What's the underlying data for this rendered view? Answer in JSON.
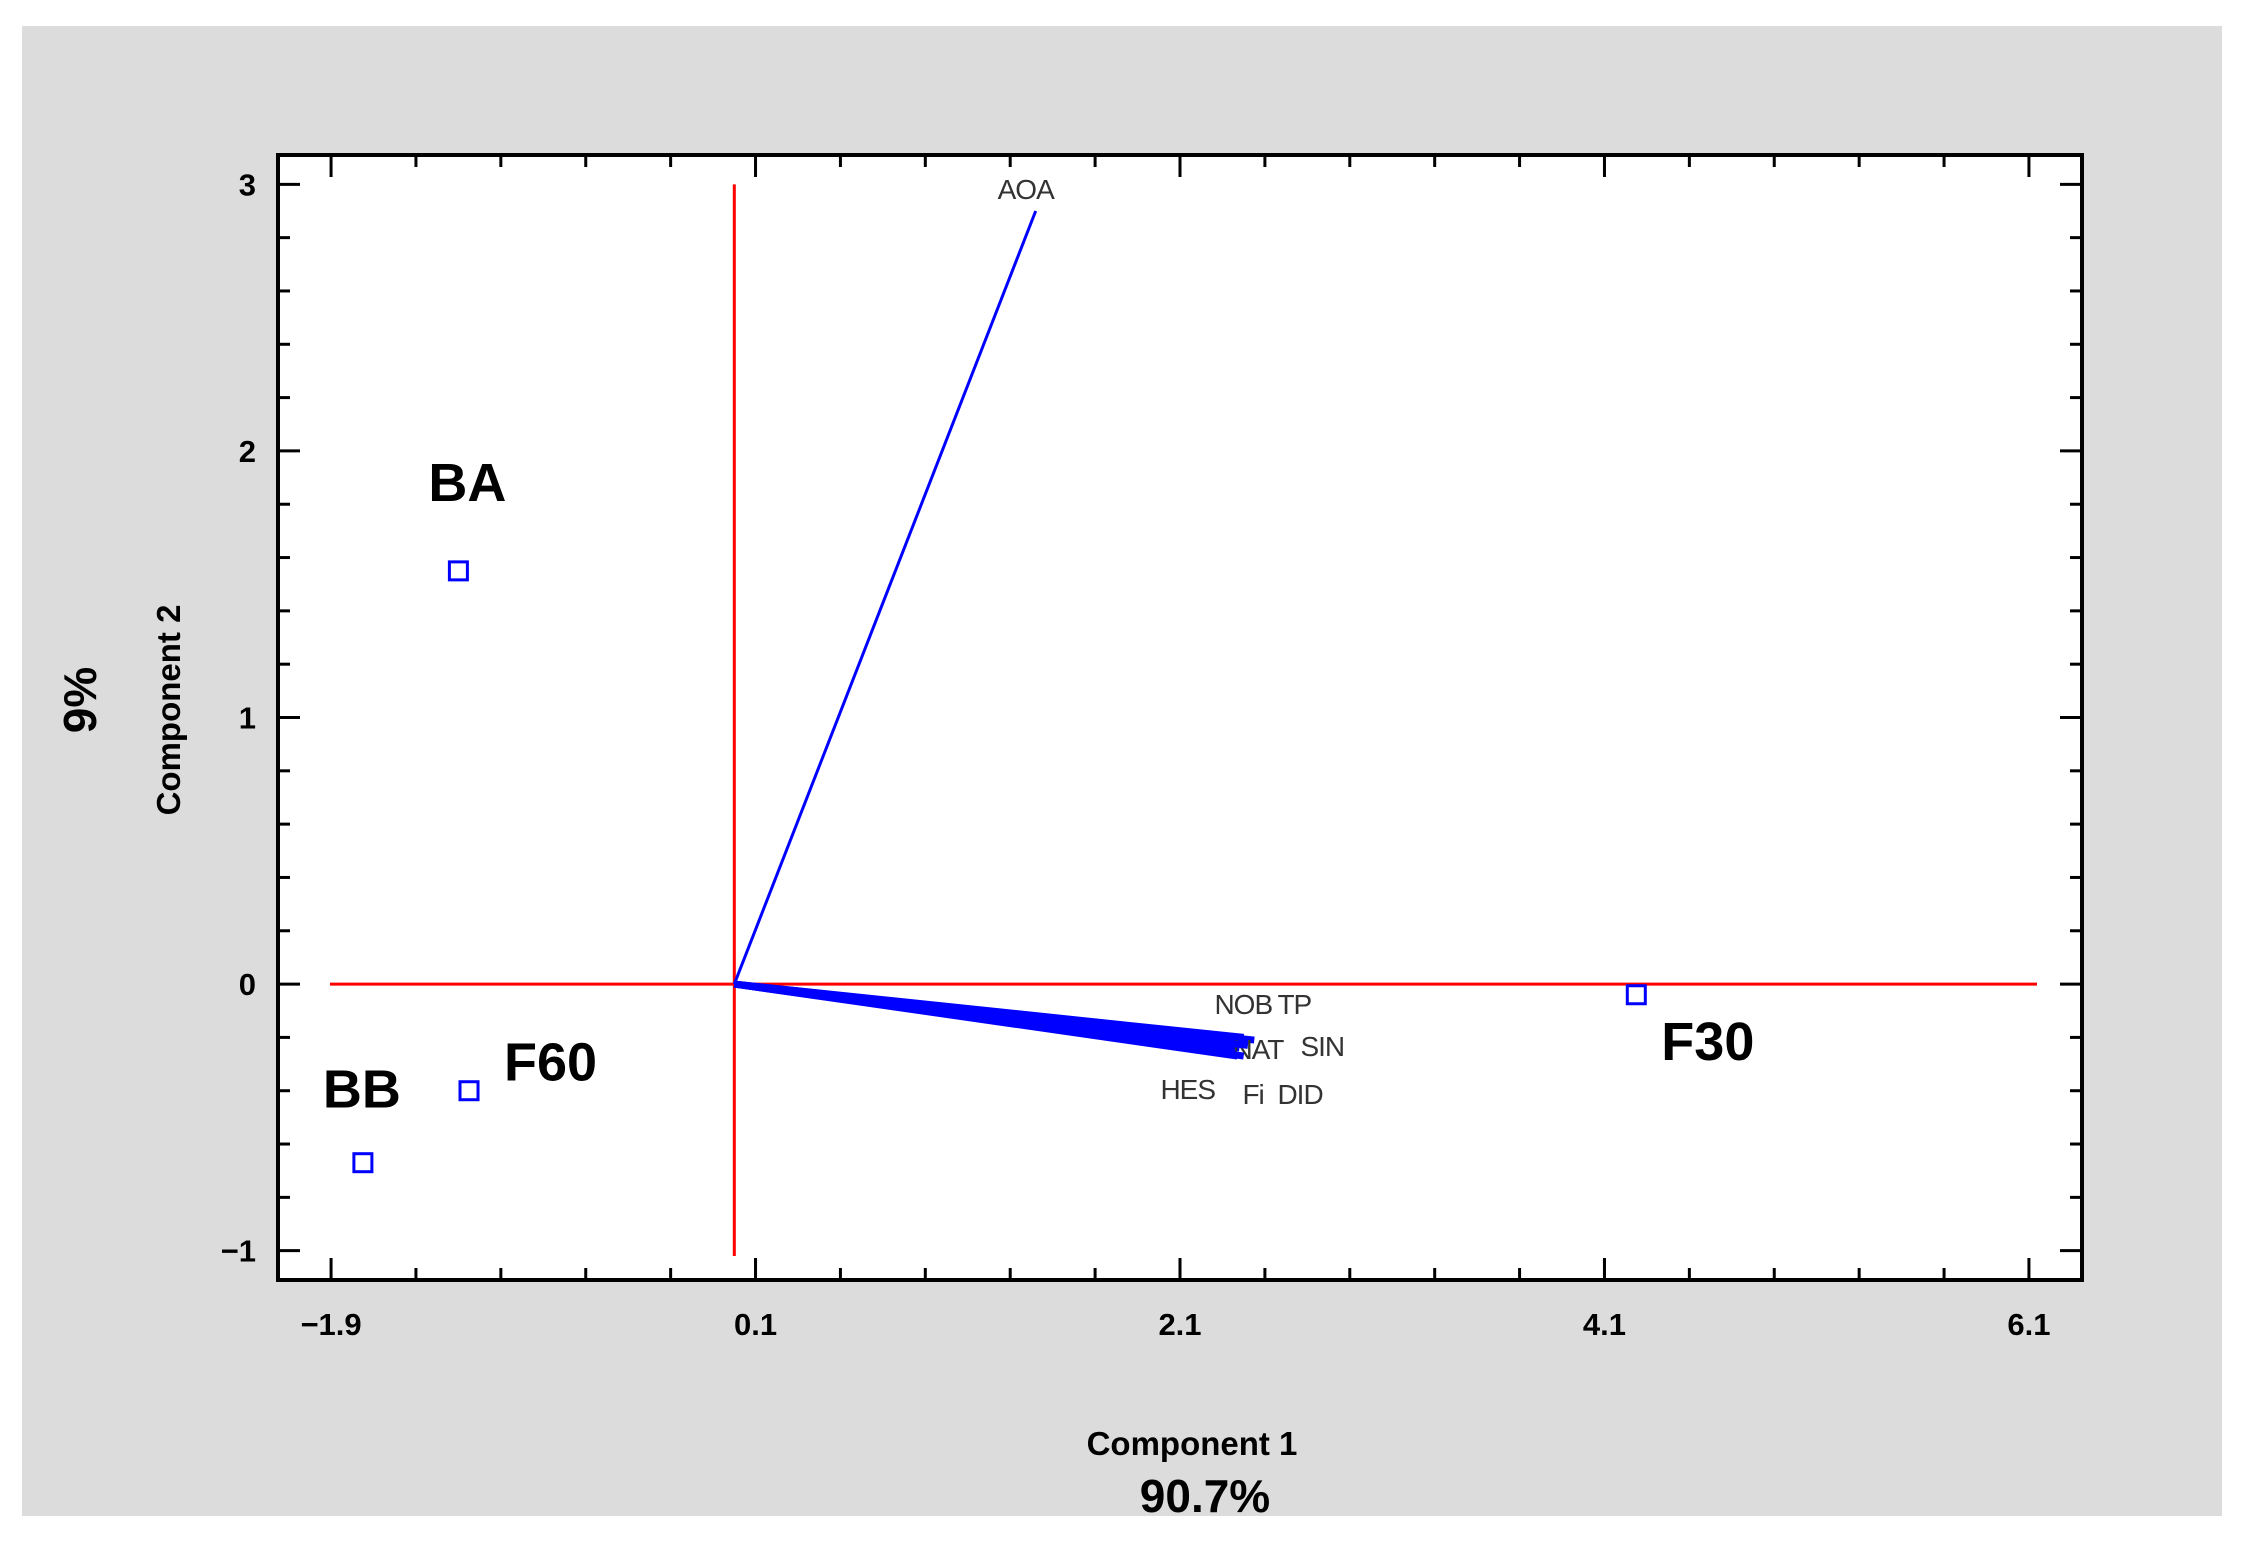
{
  "chart_data": {
    "type": "scatter",
    "subtype": "biplot",
    "title": "",
    "xlabel": "Component 1",
    "xlabel_variance": "90.7%",
    "ylabel": "Component 2",
    "ylabel_variance": "9%",
    "xlim": [
      -2.15,
      6.35
    ],
    "ylim": [
      -1.11,
      3.11
    ],
    "xticks": [
      -1.9,
      0.1,
      2.1,
      4.1,
      6.1
    ],
    "xtick_labels": [
      "−1.9",
      "0.1",
      "2.1",
      "4.1",
      "6.1"
    ],
    "yticks": [
      -1,
      0,
      1,
      2,
      3
    ],
    "ytick_labels": [
      "−1",
      "0",
      "1",
      "2",
      "3"
    ],
    "grid": false,
    "legend": "none",
    "reference_lines": {
      "x0": 0,
      "y0": 0,
      "color": "#ff0000"
    },
    "points": [
      {
        "label": "BA",
        "x": -1.3,
        "y": 1.55
      },
      {
        "label": "BB",
        "x": -1.75,
        "y": -0.67
      },
      {
        "label": "F60",
        "x": -1.25,
        "y": -0.4
      },
      {
        "label": "F30",
        "x": 4.25,
        "y": -0.04
      }
    ],
    "loadings": [
      {
        "label": "AOA",
        "x": 1.42,
        "y": 2.9
      },
      {
        "label": "NOB",
        "x": 2.4,
        "y": -0.2
      },
      {
        "label": "TP",
        "x": 2.45,
        "y": -0.21
      },
      {
        "label": "NAT",
        "x": 2.38,
        "y": -0.24
      },
      {
        "label": "SIN",
        "x": 2.42,
        "y": -0.23
      },
      {
        "label": "HES",
        "x": 2.36,
        "y": -0.26
      },
      {
        "label": "Fi",
        "x": 2.37,
        "y": -0.27
      },
      {
        "label": "DID",
        "x": 2.4,
        "y": -0.27
      }
    ],
    "colors": {
      "point": "#0000ff",
      "loading": "#0000ff",
      "reference": "#ff0000",
      "axis": "#000000",
      "background": "#dcdcdc",
      "plot_background": "#ffffff"
    }
  }
}
